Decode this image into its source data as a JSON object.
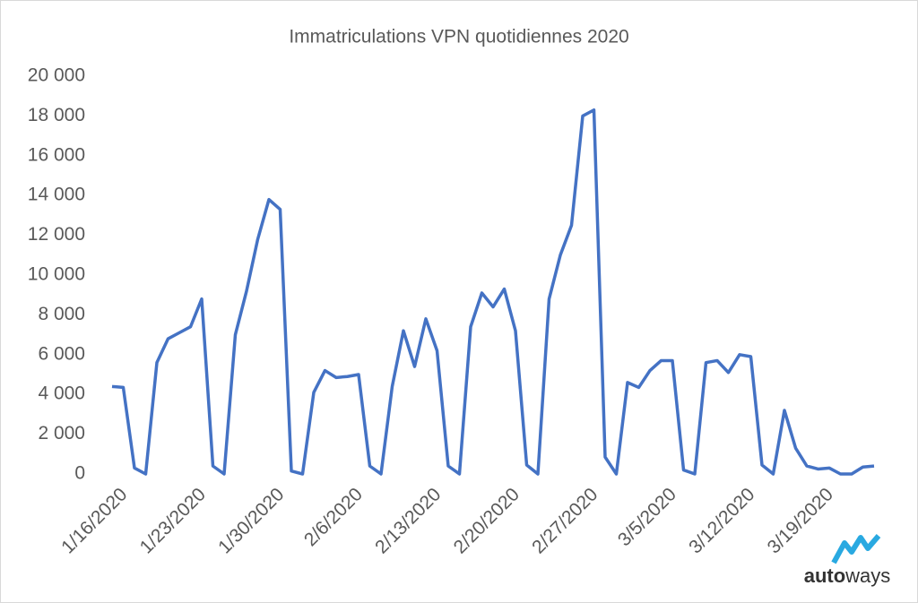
{
  "chart_data": {
    "type": "line",
    "title": "Immatriculations VPN quotidiennes 2020",
    "categories": [
      "1/16/2020",
      null,
      null,
      null,
      null,
      null,
      null,
      "1/23/2020",
      null,
      null,
      null,
      null,
      null,
      null,
      "1/30/2020",
      null,
      null,
      null,
      null,
      null,
      null,
      "2/6/2020",
      null,
      null,
      null,
      null,
      null,
      null,
      "2/13/2020",
      null,
      null,
      null,
      null,
      null,
      null,
      "2/20/2020",
      null,
      null,
      null,
      null,
      null,
      null,
      "2/27/2020",
      null,
      null,
      null,
      null,
      null,
      null,
      "3/5/2020",
      null,
      null,
      null,
      null,
      null,
      null,
      "3/12/2020",
      null,
      null,
      null,
      null,
      null,
      null,
      "3/19/2020",
      null,
      null,
      null,
      null,
      null
    ],
    "series": [
      {
        "name": "Immatriculations VPN",
        "color": "#4472c4",
        "values": [
          4400,
          4350,
          300,
          0,
          5600,
          6800,
          7100,
          7400,
          8800,
          400,
          0,
          7000,
          9200,
          11800,
          13800,
          13300,
          150,
          0,
          4100,
          5200,
          4850,
          4900,
          5000,
          400,
          0,
          4400,
          7200,
          5400,
          7800,
          6200,
          400,
          0,
          7400,
          9100,
          8400,
          9300,
          7200,
          450,
          0,
          8800,
          11000,
          12500,
          18000,
          18300,
          850,
          0,
          4600,
          4350,
          5200,
          5700,
          5700,
          200,
          0,
          5600,
          5700,
          5100,
          6000,
          5900,
          450,
          0,
          3200,
          1300,
          400,
          250,
          300,
          0,
          0,
          350,
          400
        ]
      }
    ],
    "ylim": [
      0,
      20000
    ],
    "yticks": [
      0,
      {
        "value": 2000,
        "label": "2 000"
      },
      {
        "value": 4000,
        "label": "4 000"
      },
      {
        "value": 6000,
        "label": "6 000"
      },
      {
        "value": 8000,
        "label": "8 000"
      },
      {
        "value": 10000,
        "label": "10 000"
      },
      {
        "value": 12000,
        "label": "12 000"
      },
      {
        "value": 14000,
        "label": "14 000"
      },
      {
        "value": 16000,
        "label": "16 000"
      },
      {
        "value": 18000,
        "label": "18 000"
      },
      {
        "value": 20000,
        "label": "20 000"
      }
    ],
    "grid": false,
    "logo_parts": [
      "auto",
      "ways"
    ]
  }
}
